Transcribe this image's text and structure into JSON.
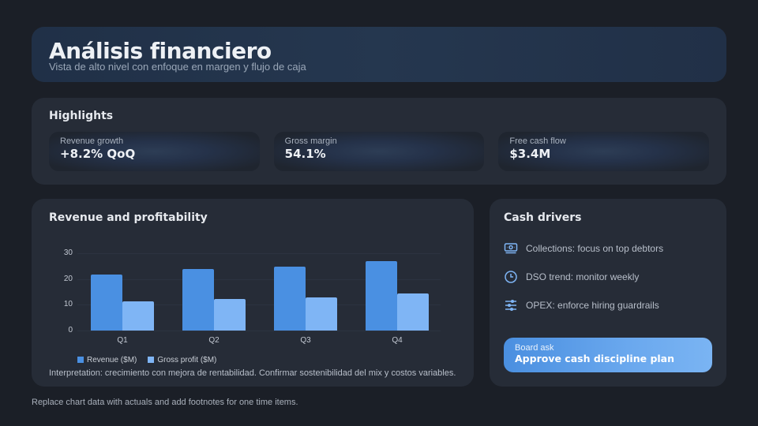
{
  "header": {
    "title": "Análisis financiero",
    "subtitle": "Vista de alto nivel con enfoque en margen y flujo de caja"
  },
  "highlights": {
    "title": "Highlights",
    "kpis": [
      {
        "label": "Revenue growth",
        "value": "+8.2% QoQ"
      },
      {
        "label": "Gross margin",
        "value": "54.1%"
      },
      {
        "label": "Free cash flow",
        "value": "$3.4M"
      }
    ]
  },
  "chart_card": {
    "title": "Revenue and profitability",
    "interpretation": "Interpretation: crecimiento con mejora de rentabilidad. Confirmar sostenibilidad del mix y costos variables."
  },
  "chart_data": {
    "type": "bar",
    "title": "Revenue and profitability",
    "categories": [
      "Q1",
      "Q2",
      "Q3",
      "Q4"
    ],
    "series": [
      {
        "name": "Revenue ($M)",
        "color": "#4a90e2",
        "values": [
          21.8,
          23.8,
          24.8,
          26.8
        ]
      },
      {
        "name": "Gross profit ($M)",
        "color": "#7fb5f5",
        "values": [
          11.2,
          12.3,
          12.9,
          14.5
        ]
      }
    ],
    "yticks": [
      "0",
      "10",
      "20",
      "30"
    ],
    "ylim": [
      0,
      30
    ],
    "xlabel": "",
    "ylabel": "",
    "grid": true,
    "legend_position": "bottom"
  },
  "drivers": {
    "title": "Cash drivers",
    "items": [
      {
        "icon": "money-icon",
        "text": "Collections: focus on top debtors"
      },
      {
        "icon": "clock-icon",
        "text": "DSO trend: monitor weekly"
      },
      {
        "icon": "sliders-icon",
        "text": "OPEX: enforce hiring guardrails"
      }
    ],
    "board_ask": {
      "label": "Board ask",
      "value": "Approve cash discipline plan"
    }
  },
  "footer": {
    "note": "Replace chart data with actuals and add footnotes for one time items."
  },
  "colors": {
    "background": "#1b1f27",
    "card": "#262c37",
    "accent": "#4a90e2",
    "accent_light": "#7fb5f5"
  }
}
